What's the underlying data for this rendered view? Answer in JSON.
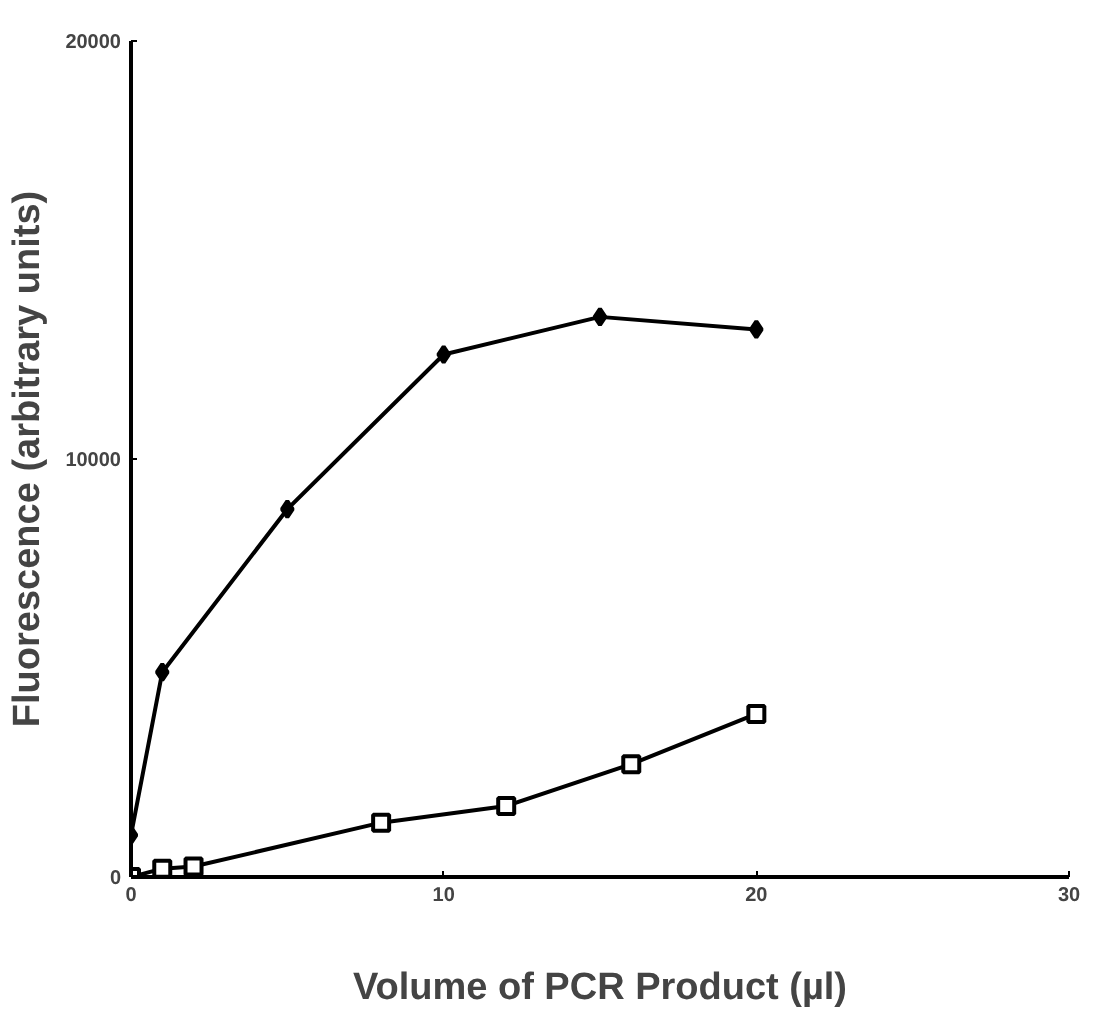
{
  "chart_data": {
    "type": "line",
    "xlabel": "Volume of PCR Product (µl)",
    "ylabel": "Fluorescence (arbitrary units)",
    "xlim": [
      0,
      30
    ],
    "xticks": [
      0,
      10,
      20,
      30
    ],
    "ylim": [
      0,
      20000
    ],
    "yticks": [
      0,
      10000,
      20000
    ],
    "grid": false,
    "series": [
      {
        "color": "#000000",
        "marker": "diamond",
        "x": [
          0,
          1,
          5,
          10,
          15,
          20
        ],
        "values": [
          1000,
          4900,
          8800,
          12500,
          13400,
          13100
        ]
      },
      {
        "color": "#000000",
        "marker": "square",
        "x": [
          0,
          1,
          2,
          8,
          12,
          16,
          20
        ],
        "values": [
          0,
          200,
          250,
          1300,
          1700,
          2700,
          3900
        ]
      }
    ]
  }
}
